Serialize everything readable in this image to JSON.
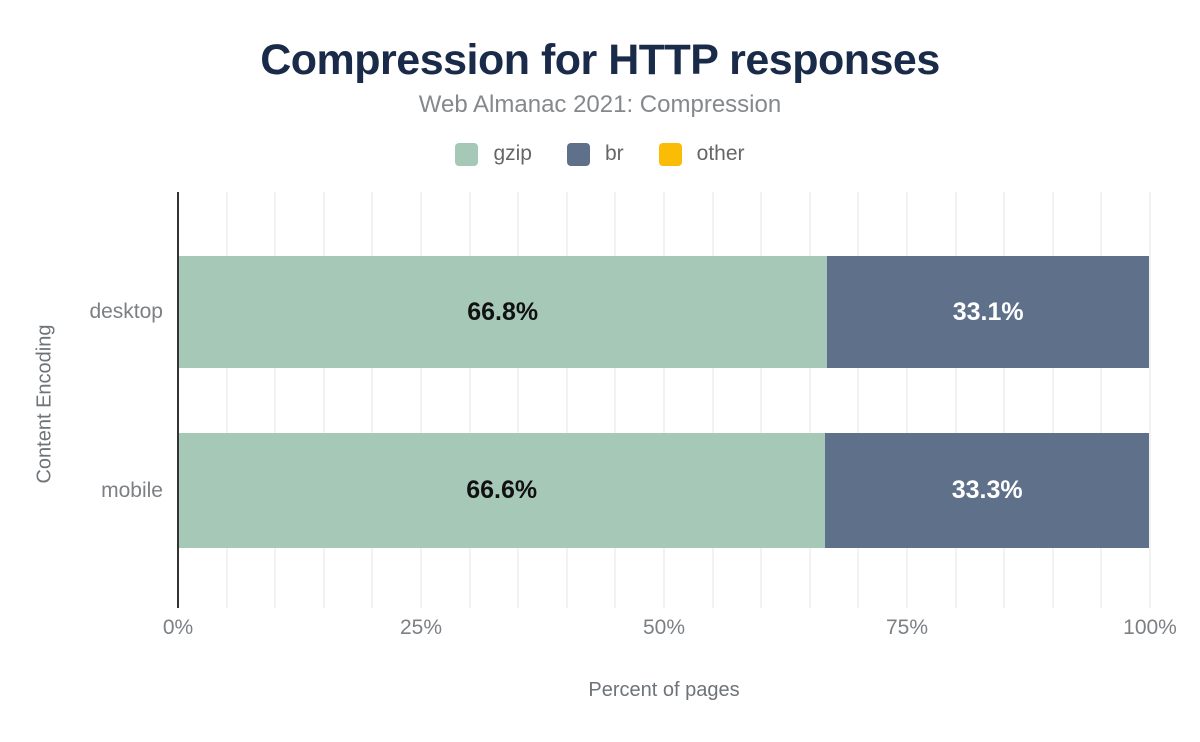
{
  "header": {
    "title": "Compression for HTTP responses",
    "subtitle": "Web Almanac 2021: Compression"
  },
  "legend": {
    "items": [
      {
        "label": "gzip",
        "color": "#a6c9b7"
      },
      {
        "label": "br",
        "color": "#5f708b"
      },
      {
        "label": "other",
        "color": "#fbbc05"
      }
    ]
  },
  "chart_data": {
    "type": "bar",
    "orientation": "horizontal",
    "stacked": true,
    "title": "Compression for HTTP responses",
    "subtitle": "Web Almanac 2021: Compression",
    "categories": [
      "desktop",
      "mobile"
    ],
    "series": [
      {
        "name": "gzip",
        "color": "#a6c9b7",
        "values": [
          66.8,
          66.6
        ],
        "data_labels": [
          "66.8%",
          "66.6%"
        ],
        "label_color": "#111111"
      },
      {
        "name": "br",
        "color": "#5f708b",
        "values": [
          33.1,
          33.3
        ],
        "data_labels": [
          "33.1%",
          "33.3%"
        ],
        "label_color": "#ffffff"
      }
    ],
    "legend_entries": [
      "gzip",
      "br",
      "other"
    ],
    "legend_position": "top",
    "xlabel": "Percent of pages",
    "ylabel": "Content Encoding",
    "xlim": [
      0,
      100
    ],
    "xticks": [
      {
        "value": 0,
        "label": "0%"
      },
      {
        "value": 25,
        "label": "25%"
      },
      {
        "value": 50,
        "label": "50%"
      },
      {
        "value": 75,
        "label": "75%"
      },
      {
        "value": 100,
        "label": "100%"
      }
    ],
    "grid": {
      "vertical_step_percent": 5,
      "color": "#f2f2f2"
    }
  },
  "colors": {
    "title": "#1a2b4a",
    "subtitle": "#85898d",
    "axis_line": "#333333",
    "tick_text": "#7c8084",
    "axis_title_text": "#6d7378",
    "legend_text": "#666666",
    "background": "#ffffff"
  }
}
